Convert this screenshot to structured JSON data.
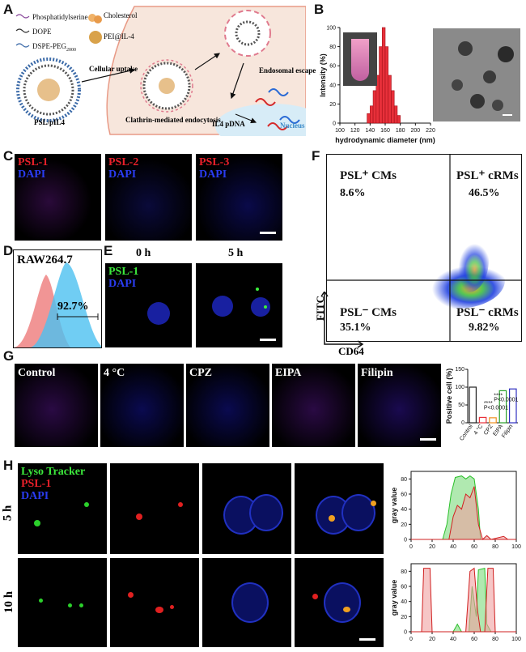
{
  "panels": {
    "A": "A",
    "B": "B",
    "C": "C",
    "D": "D",
    "E": "E",
    "F": "F",
    "G": "G",
    "H": "H"
  },
  "panelA": {
    "legend": [
      "Phosphatidylserine",
      "DOPE",
      "DSPE-PEG",
      "2000",
      "Cholesterol",
      "PEI@IL-4"
    ],
    "labels": {
      "psl": "PSL/pIL4",
      "uptake": "Cellular uptake",
      "clathrin": "Clathrin-mediated endocytosis",
      "escape": "Endosomal escape",
      "pdna": "IL4 pDNA",
      "nucleus": "Nucleus"
    },
    "colors": {
      "cell_bg": "#f7e6dc",
      "nucleus": "#d7ecf7",
      "pink": "#e07a8e"
    }
  },
  "chart_data": {
    "type": "bar",
    "title": "",
    "xlabel": "hydrodynamic diameter (nm)",
    "ylabel": "Intensity (%)",
    "xlim": [
      100,
      220
    ],
    "ylim": [
      0,
      100
    ],
    "xticks": [
      100,
      120,
      140,
      160,
      180,
      200,
      220
    ],
    "yticks": [
      0,
      20,
      40,
      60,
      80,
      100
    ],
    "bins": [
      138,
      142,
      146,
      150,
      154,
      158,
      162,
      166,
      170,
      174,
      178
    ],
    "values": [
      10,
      18,
      34,
      50,
      80,
      100,
      80,
      50,
      34,
      18,
      8
    ],
    "bar_color": "#e8303a"
  },
  "panelC": {
    "labels": [
      "PSL-1",
      "PSL-2",
      "PSL-3"
    ],
    "dapi": "DAPI"
  },
  "panelD": {
    "title": "RAW264.7",
    "percent": "92.7%"
  },
  "panelE": {
    "times": [
      "0 h",
      "5 h"
    ],
    "psl": "PSL-1",
    "dapi": "DAPI"
  },
  "panelF": {
    "q1_label": "PSL⁺ CMs",
    "q1_pct": "8.6%",
    "q2_label": "PSL⁺ cRMs",
    "q2_pct": "46.5%",
    "q3_label": "PSL⁻ CMs",
    "q3_pct": "35.1%",
    "q4_label": "PSL⁻ cRMs",
    "q4_pct": "9.82%",
    "xlabel": "CD64",
    "ylabel": "FITC"
  },
  "panelG": {
    "conditions": [
      "Control",
      "4 °C",
      "CPZ",
      "EIPA",
      "Filipin"
    ],
    "bar_ylabel": "Positive cell (%)",
    "bar_values": [
      100,
      15,
      14,
      90,
      95
    ],
    "yticks": [
      0,
      50,
      100,
      150
    ],
    "sig": [
      "****",
      "P<0.0001",
      "****",
      "P<0.0001"
    ]
  },
  "panelH": {
    "legend": [
      "Lyso Tracker",
      "PSL-1",
      "DAPI"
    ],
    "rows": [
      "5 h",
      "10 h"
    ],
    "plot_ylabel": "gray value",
    "xticks": [
      0,
      20,
      40,
      60,
      80,
      100
    ],
    "yticks": [
      0,
      20,
      40,
      60,
      80
    ]
  }
}
